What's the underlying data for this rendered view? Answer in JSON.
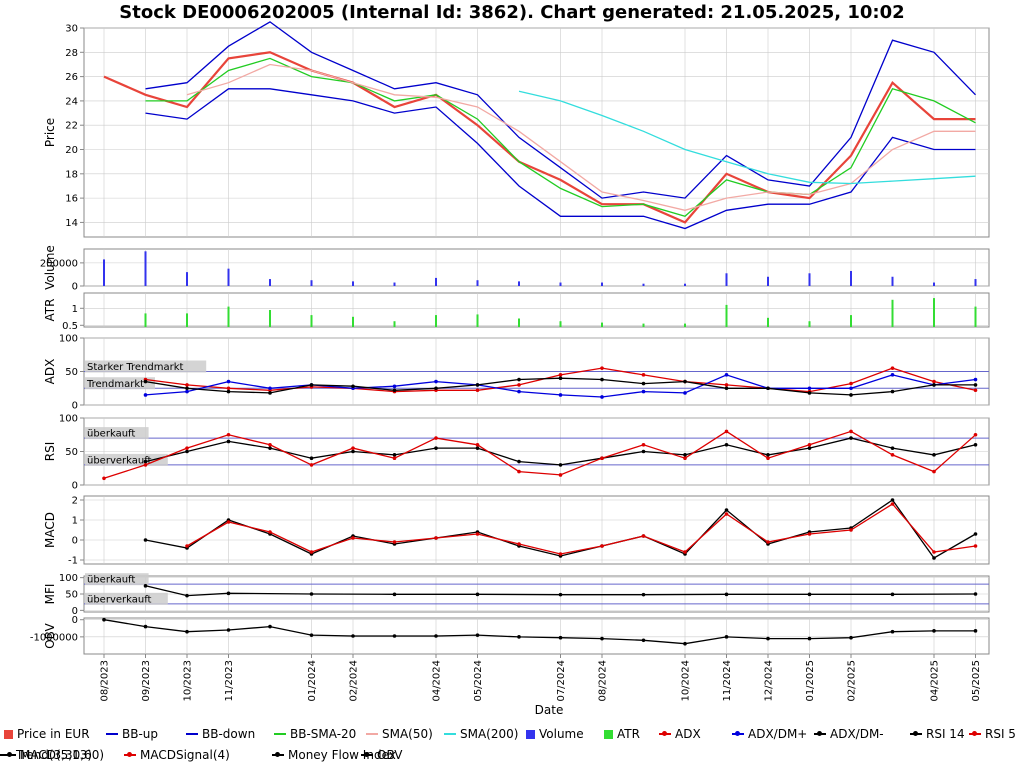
{
  "title": "Stock DE0006202005 (Internal Id: 3862). Chart generated: 21.05.2025, 10:02",
  "xlabel": "Date",
  "x_ticks": [
    "08/2023",
    "09/2023",
    "10/2023",
    "11/2023",
    "01/2024",
    "02/2024",
    "04/2024",
    "05/2024",
    "07/2024",
    "08/2024",
    "10/2024",
    "11/2024",
    "12/2024",
    "01/2025",
    "02/2025",
    "04/2025",
    "05/2025"
  ],
  "colors": {
    "price": "#e8443a",
    "bb": "#0000cc",
    "bb_sma": "#22cc22",
    "sma50": "#f2a9a4",
    "sma200": "#33dddd",
    "volume": "#3333ee",
    "atr": "#33dd33",
    "adx": "#dd0000",
    "dm_plus": "#0000dd",
    "dm_minus": "#000000",
    "rsi14": "#000000",
    "rsi5": "#dd0000",
    "macd": "#000000",
    "macd_signal": "#dd0000",
    "mfi": "#000000",
    "obv": "#000000",
    "ref_line": "#6666cc",
    "grid": "#cccccc"
  },
  "legend": [
    {
      "label": "Price in EUR",
      "kind": "box",
      "color": "#e8443a"
    },
    {
      "label": "BB-up",
      "kind": "line",
      "color": "#0000cc"
    },
    {
      "label": "BB-down",
      "kind": "line",
      "color": "#0000cc"
    },
    {
      "label": "BB-SMA-20",
      "kind": "line",
      "color": "#22cc22"
    },
    {
      "label": "SMA(50)",
      "kind": "line",
      "color": "#f2a9a4"
    },
    {
      "label": "SMA(200)",
      "kind": "line",
      "color": "#33dddd"
    },
    {
      "label": "Volume",
      "kind": "box",
      "color": "#3333ee"
    },
    {
      "label": "ATR",
      "kind": "box",
      "color": "#33dd33"
    },
    {
      "label": "ADX",
      "kind": "dot",
      "color": "#dd0000"
    },
    {
      "label": "ADX/DM+",
      "kind": "dot",
      "color": "#0000dd"
    },
    {
      "label": "ADX/DM-",
      "kind": "dot",
      "color": "#000000"
    },
    {
      "label": "RSI 14",
      "kind": "dot",
      "color": "#000000"
    },
    {
      "label": "RSI 5",
      "kind": "dot",
      "color": "#dd0000"
    },
    {
      "label": "MACD(5,13)",
      "kind": "dot",
      "color": "#000000"
    },
    {
      "label": "MACDSignal(4)",
      "kind": "dot",
      "color": "#dd0000"
    },
    {
      "label": "Money Flow Index",
      "kind": "dot",
      "color": "#000000"
    },
    {
      "label": "OBV",
      "kind": "dot",
      "color": "#000000"
    },
    {
      "label": "Trend(3,30,60)",
      "kind": "line",
      "color": "#000000"
    }
  ],
  "chart_data": [
    {
      "panel": "price",
      "type": "line",
      "ylabel": "Price",
      "y_ticks": [
        14,
        16,
        18,
        20,
        22,
        24,
        26,
        28,
        30
      ],
      "ylim": [
        12.8,
        30
      ],
      "x": [
        "08/2023",
        "09/2023",
        "10/2023",
        "11/2023",
        "12/2023",
        "01/2024",
        "02/2024",
        "03/2024",
        "04/2024",
        "05/2024",
        "06/2024",
        "07/2024",
        "08/2024",
        "09/2024",
        "10/2024",
        "11/2024",
        "12/2024",
        "01/2025",
        "02/2025",
        "03/2025",
        "04/2025",
        "05/2025"
      ],
      "series": [
        {
          "name": "Price in EUR",
          "values": [
            26.0,
            24.5,
            23.5,
            27.5,
            28.0,
            26.5,
            25.5,
            23.5,
            24.5,
            22.0,
            19.0,
            17.5,
            15.5,
            15.5,
            14.0,
            18.0,
            16.5,
            16.0,
            19.5,
            25.5,
            22.5,
            22.5
          ]
        },
        {
          "name": "BB-up",
          "values": [
            null,
            25.0,
            25.5,
            28.5,
            30.5,
            28.0,
            26.5,
            25.0,
            25.5,
            24.5,
            21.0,
            18.5,
            16.0,
            16.5,
            16.0,
            19.5,
            17.5,
            17.0,
            21.0,
            29.0,
            28.0,
            24.5
          ]
        },
        {
          "name": "BB-down",
          "values": [
            null,
            23.0,
            22.5,
            25.0,
            25.0,
            24.5,
            24.0,
            23.0,
            23.5,
            20.5,
            17.0,
            14.5,
            14.5,
            14.5,
            13.5,
            15.0,
            15.5,
            15.5,
            16.5,
            21.0,
            20.0,
            20.0
          ]
        },
        {
          "name": "BB-SMA-20",
          "values": [
            null,
            24.0,
            24.0,
            26.5,
            27.5,
            26.0,
            25.5,
            24.0,
            24.5,
            22.5,
            19.0,
            16.8,
            15.3,
            15.5,
            14.5,
            17.5,
            16.5,
            16.3,
            18.5,
            25.0,
            24.0,
            22.2
          ]
        },
        {
          "name": "SMA(50)",
          "values": [
            null,
            null,
            24.5,
            25.5,
            27.0,
            26.5,
            25.5,
            24.5,
            24.3,
            23.5,
            21.5,
            19.0,
            16.5,
            15.8,
            15.0,
            16.0,
            16.5,
            16.3,
            17.2,
            20.0,
            21.5,
            21.5
          ]
        },
        {
          "name": "SMA(200)",
          "values": [
            null,
            null,
            null,
            null,
            null,
            null,
            null,
            null,
            null,
            null,
            24.8,
            24.0,
            22.8,
            21.5,
            20.0,
            19.0,
            18.0,
            17.3,
            17.2,
            17.4,
            17.6,
            17.8
          ]
        }
      ]
    },
    {
      "panel": "volume",
      "type": "bar",
      "ylabel": "Volume",
      "y_ticks": [
        0,
        200000
      ],
      "ylim": [
        0,
        320000
      ],
      "x": [
        "08/2023",
        "09/2023",
        "10/2023",
        "11/2023",
        "12/2023",
        "01/2024",
        "02/2024",
        "03/2024",
        "04/2024",
        "05/2024",
        "06/2024",
        "07/2024",
        "08/2024",
        "09/2024",
        "10/2024",
        "11/2024",
        "12/2024",
        "01/2025",
        "02/2025",
        "03/2025",
        "04/2025",
        "05/2025"
      ],
      "values": [
        230000,
        300000,
        120000,
        150000,
        60000,
        50000,
        40000,
        30000,
        70000,
        50000,
        40000,
        30000,
        30000,
        20000,
        20000,
        110000,
        80000,
        110000,
        130000,
        80000,
        30000,
        60000
      ]
    },
    {
      "panel": "atr",
      "type": "bar",
      "ylabel": "ATR",
      "y_ticks": [
        0.5,
        1
      ],
      "ylim": [
        0.45,
        1.45
      ],
      "x": [
        "09/2023",
        "10/2023",
        "11/2023",
        "12/2023",
        "01/2024",
        "02/2024",
        "03/2024",
        "04/2024",
        "05/2024",
        "06/2024",
        "07/2024",
        "08/2024",
        "09/2024",
        "10/2024",
        "11/2024",
        "12/2024",
        "01/2025",
        "02/2025",
        "03/2025",
        "04/2025",
        "05/2025"
      ],
      "values": [
        0.85,
        0.85,
        1.05,
        0.95,
        0.8,
        0.75,
        0.62,
        0.8,
        0.82,
        0.7,
        0.62,
        0.58,
        0.55,
        0.55,
        1.1,
        0.72,
        0.62,
        0.8,
        1.25,
        1.3,
        1.05
      ]
    },
    {
      "panel": "adx",
      "type": "line",
      "ylabel": "ADX",
      "y_ticks": [
        0,
        50,
        100
      ],
      "ylim": [
        0,
        100
      ],
      "annotations": [
        "Starker Trendmarkt",
        "Trendmarkt"
      ],
      "ref_lines": [
        50,
        25
      ],
      "x": [
        "09/2023",
        "10/2023",
        "11/2023",
        "12/2023",
        "01/2024",
        "02/2024",
        "03/2024",
        "04/2024",
        "05/2024",
        "06/2024",
        "07/2024",
        "08/2024",
        "09/2024",
        "10/2024",
        "11/2024",
        "12/2024",
        "01/2025",
        "02/2025",
        "03/2025",
        "04/2025",
        "05/2025"
      ],
      "series": [
        {
          "name": "ADX",
          "values": [
            38,
            30,
            25,
            22,
            27,
            25,
            20,
            22,
            22,
            30,
            45,
            55,
            45,
            35,
            30,
            25,
            20,
            32,
            55,
            35,
            22
          ]
        },
        {
          "name": "ADX/DM+",
          "values": [
            15,
            20,
            35,
            25,
            30,
            25,
            28,
            35,
            30,
            20,
            15,
            12,
            20,
            18,
            45,
            25,
            25,
            25,
            45,
            30,
            38
          ]
        },
        {
          "name": "ADX/DM-",
          "values": [
            35,
            25,
            20,
            18,
            30,
            28,
            22,
            25,
            30,
            38,
            40,
            38,
            32,
            35,
            25,
            25,
            18,
            15,
            20,
            30,
            30
          ]
        }
      ]
    },
    {
      "panel": "rsi",
      "type": "line",
      "ylabel": "RSI",
      "y_ticks": [
        0,
        50,
        100
      ],
      "ylim": [
        0,
        100
      ],
      "annotations": [
        "überkauft",
        "überverkauft"
      ],
      "ref_lines": [
        70,
        30
      ],
      "x": [
        "08/2023",
        "09/2023",
        "10/2023",
        "11/2023",
        "12/2023",
        "01/2024",
        "02/2024",
        "03/2024",
        "04/2024",
        "05/2024",
        "06/2024",
        "07/2024",
        "08/2024",
        "09/2024",
        "10/2024",
        "11/2024",
        "12/2024",
        "01/2025",
        "02/2025",
        "03/2025",
        "04/2025",
        "05/2025"
      ],
      "series": [
        {
          "name": "RSI 14",
          "values": [
            null,
            35,
            50,
            65,
            55,
            40,
            50,
            45,
            55,
            55,
            35,
            30,
            40,
            50,
            45,
            60,
            45,
            55,
            70,
            55,
            45,
            60
          ]
        },
        {
          "name": "RSI 5",
          "values": [
            10,
            30,
            55,
            75,
            60,
            30,
            55,
            40,
            70,
            60,
            20,
            15,
            40,
            60,
            40,
            80,
            40,
            60,
            80,
            45,
            20,
            75
          ]
        }
      ]
    },
    {
      "panel": "macd",
      "type": "line",
      "ylabel": "MACD",
      "y_ticks": [
        -1,
        0,
        1,
        2
      ],
      "ylim": [
        -1.2,
        2.2
      ],
      "x": [
        "09/2023",
        "10/2023",
        "11/2023",
        "12/2023",
        "01/2024",
        "02/2024",
        "03/2024",
        "04/2024",
        "05/2024",
        "06/2024",
        "07/2024",
        "08/2024",
        "09/2024",
        "10/2024",
        "11/2024",
        "12/2024",
        "01/2025",
        "02/2025",
        "03/2025",
        "04/2025",
        "05/2025"
      ],
      "series": [
        {
          "name": "MACD(5,13)",
          "values": [
            0,
            -0.4,
            1.0,
            0.3,
            -0.7,
            0.2,
            -0.2,
            0.1,
            0.4,
            -0.3,
            -0.8,
            -0.3,
            0.2,
            -0.7,
            1.5,
            -0.2,
            0.4,
            0.6,
            2.0,
            -0.9,
            0.3
          ]
        },
        {
          "name": "MACDSignal(4)",
          "values": [
            null,
            -0.3,
            0.9,
            0.4,
            -0.6,
            0.1,
            -0.1,
            0.1,
            0.3,
            -0.2,
            -0.7,
            -0.3,
            0.2,
            -0.6,
            1.3,
            -0.1,
            0.3,
            0.5,
            1.8,
            -0.6,
            -0.3
          ]
        }
      ]
    },
    {
      "panel": "mfi",
      "type": "line",
      "ylabel": "MFI",
      "y_ticks": [
        0,
        50,
        100
      ],
      "ylim": [
        -5,
        105
      ],
      "annotations": [
        "überkauft",
        "überverkauft"
      ],
      "ref_lines": [
        80,
        20
      ],
      "x": [
        "08/2023",
        "09/2023",
        "10/2023",
        "11/2023",
        "01/2024",
        "03/2024",
        "05/2024",
        "07/2024",
        "09/2024",
        "11/2024",
        "01/2025",
        "03/2025",
        "05/2025"
      ],
      "series": [
        {
          "name": "Money Flow Index",
          "values": [
            null,
            75,
            45,
            52,
            50,
            49,
            49,
            48,
            48,
            49,
            49,
            49,
            50
          ]
        }
      ]
    },
    {
      "panel": "obv",
      "type": "line",
      "ylabel": "OBV",
      "y_ticks": [
        0,
        -1000000
      ],
      "ylim": [
        -2000000,
        100000
      ],
      "x": [
        "08/2023",
        "09/2023",
        "10/2023",
        "11/2023",
        "12/2023",
        "01/2024",
        "02/2024",
        "03/2024",
        "04/2024",
        "05/2024",
        "06/2024",
        "07/2024",
        "08/2024",
        "09/2024",
        "10/2024",
        "11/2024",
        "12/2024",
        "01/2025",
        "02/2025",
        "03/2025",
        "04/2025",
        "05/2025"
      ],
      "series": [
        {
          "name": "OBV",
          "values": [
            0,
            -400000,
            -700000,
            -600000,
            -400000,
            -900000,
            -950000,
            -950000,
            -950000,
            -900000,
            -1000000,
            -1050000,
            -1100000,
            -1200000,
            -1400000,
            -1000000,
            -1100000,
            -1100000,
            -1050000,
            -700000,
            -650000,
            -650000
          ]
        }
      ]
    }
  ]
}
